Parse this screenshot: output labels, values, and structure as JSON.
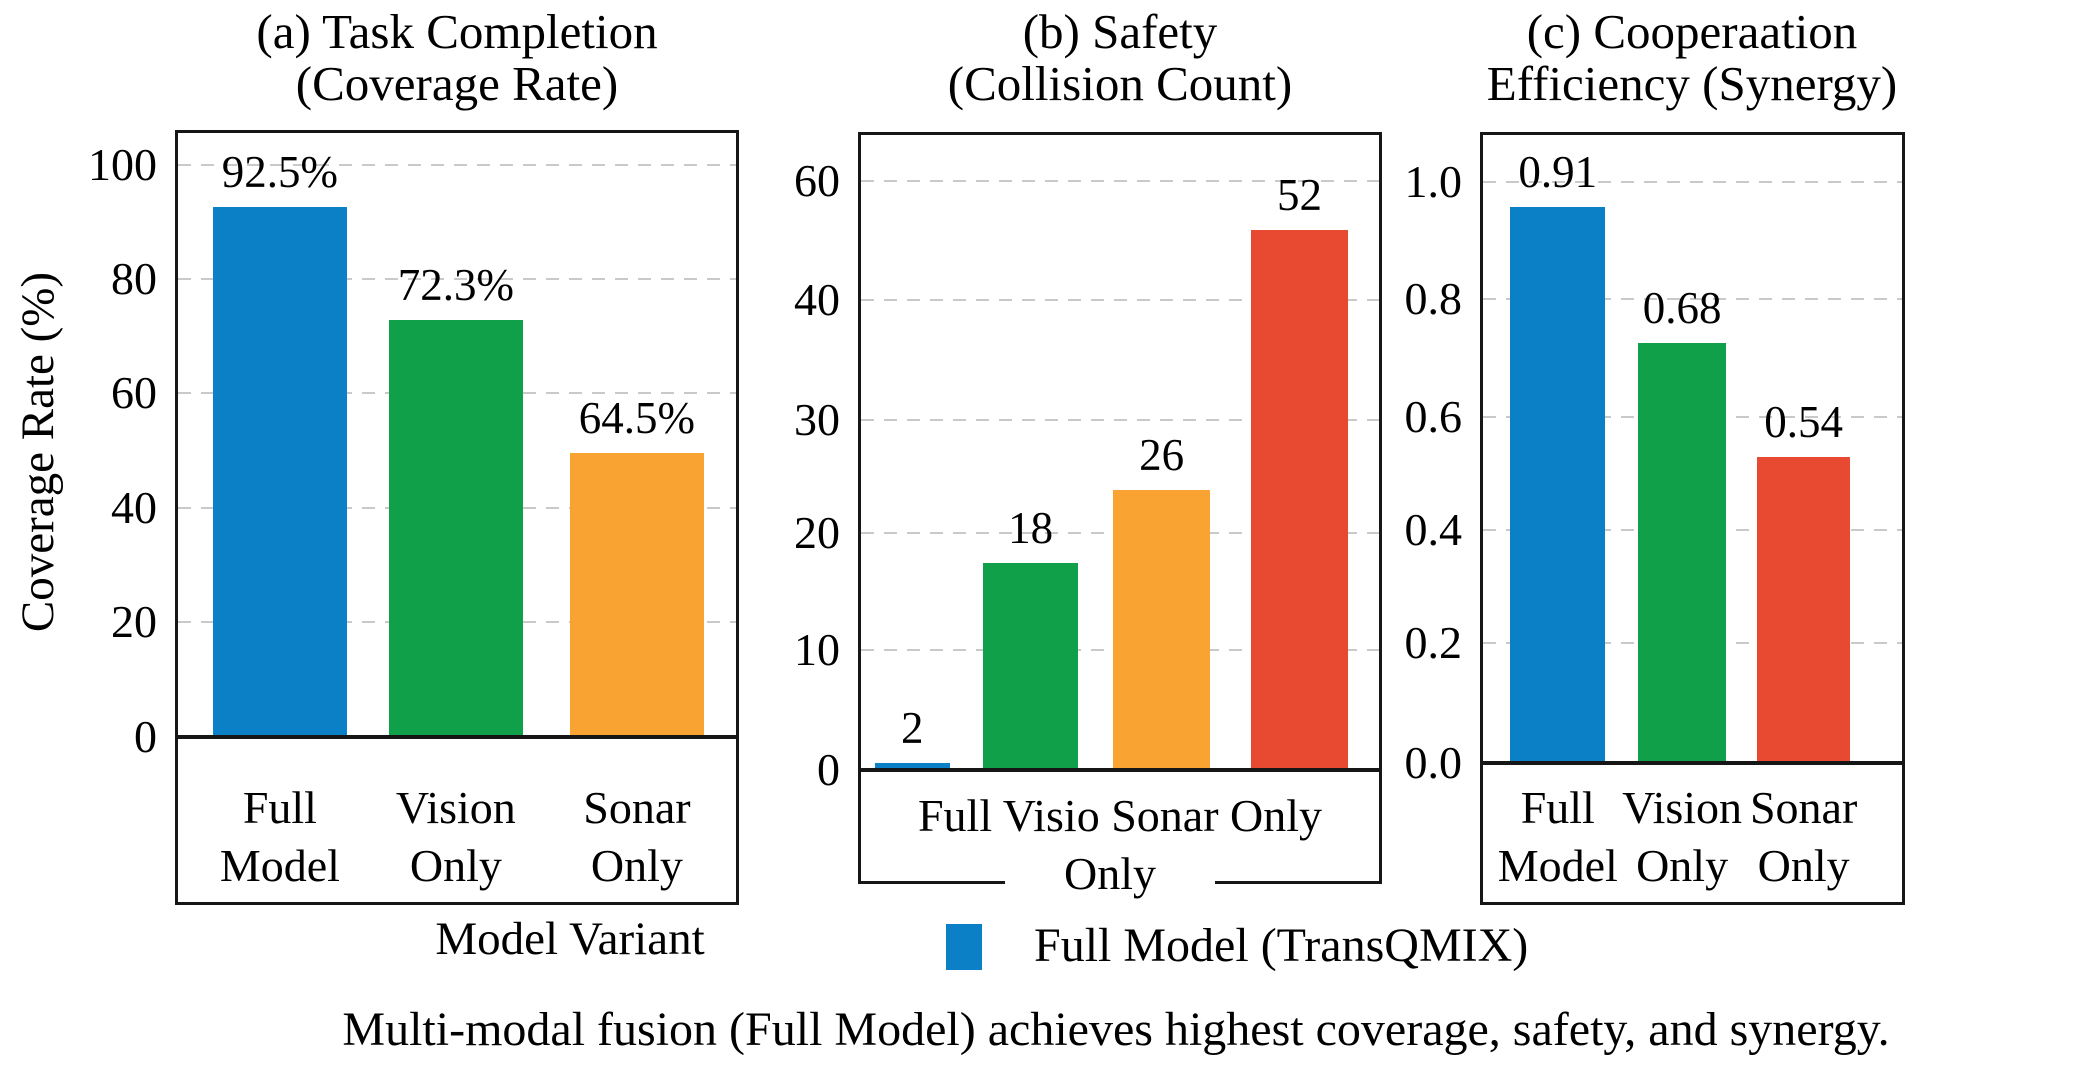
{
  "figure": {
    "x_axis_title": "Model Variant",
    "legend": {
      "label": "Full Model (TransQMIX)",
      "color": "#0c80c6"
    },
    "caption": "Multi-modal fusion (Full Model) achieves highest coverage, safety, and synergy.",
    "colors": {
      "blue": "#0c80c6",
      "green": "#10a04a",
      "orange": "#f9a332",
      "red": "#e84a31",
      "grid": "#c9c9c9",
      "frame": "#161616"
    }
  },
  "chart_data": [
    {
      "type": "bar",
      "panel": "a",
      "title_lines": [
        "(a) Task Completion",
        "(Coverage Rate)"
      ],
      "ylabel": "Coverage Rate (%)",
      "ytick_labels": [
        "100",
        "80",
        "60",
        "40",
        "20",
        "0"
      ],
      "ylim": [
        0,
        107
      ],
      "grid": "dashed-horizontal",
      "categories": [
        [
          "Full",
          "Model"
        ],
        [
          "Vision",
          "Only"
        ],
        [
          "Sonar",
          "Only"
        ]
      ],
      "values": [
        92.5,
        72.3,
        64.5
      ],
      "value_labels": [
        "92.5%",
        "72.3%",
        "64.5%"
      ],
      "bar_colors": [
        "#0c80c6",
        "#10a04a",
        "#f9a332"
      ],
      "drawn_fractions": [
        0.873,
        0.687,
        0.468
      ]
    },
    {
      "type": "bar",
      "panel": "b",
      "title_lines": [
        "(b) Safety",
        "(Collision Count)"
      ],
      "ylabel": "",
      "ytick_labels": [
        "60",
        "40",
        "30",
        "20",
        "10",
        "0"
      ],
      "ylim": [
        0,
        64
      ],
      "grid": "dashed-horizontal",
      "xlabel_line1": "Full Visio Sonar Only",
      "xlabel_line2": "Only",
      "values": [
        2,
        18,
        26,
        52
      ],
      "value_labels": [
        "2",
        "18",
        "26",
        "52"
      ],
      "bar_colors": [
        "#0c80c6",
        "#10a04a",
        "#f9a332",
        "#e84a31"
      ],
      "drawn_fractions": [
        0.011,
        0.324,
        0.439,
        0.846
      ]
    },
    {
      "type": "bar",
      "panel": "c",
      "title_lines": [
        "(c) Cooperaation",
        "Efficiency (Synergy)"
      ],
      "ylabel": "",
      "ytick_labels": [
        "1.0",
        "0.8",
        "0.6",
        "0.4",
        "0.2",
        "0.0"
      ],
      "ylim": [
        0,
        1.07
      ],
      "grid": "dashed-horizontal",
      "categories": [
        [
          "Full",
          "Model"
        ],
        [
          "Vision",
          "Only"
        ],
        [
          "Sonar",
          "Only"
        ]
      ],
      "values": [
        0.91,
        0.68,
        0.54
      ],
      "value_labels": [
        "0.91",
        "0.68",
        "0.54"
      ],
      "bar_colors": [
        "#0c80c6",
        "#10a04a",
        "#e84a31"
      ],
      "drawn_fractions": [
        0.881,
        0.666,
        0.485
      ]
    }
  ]
}
